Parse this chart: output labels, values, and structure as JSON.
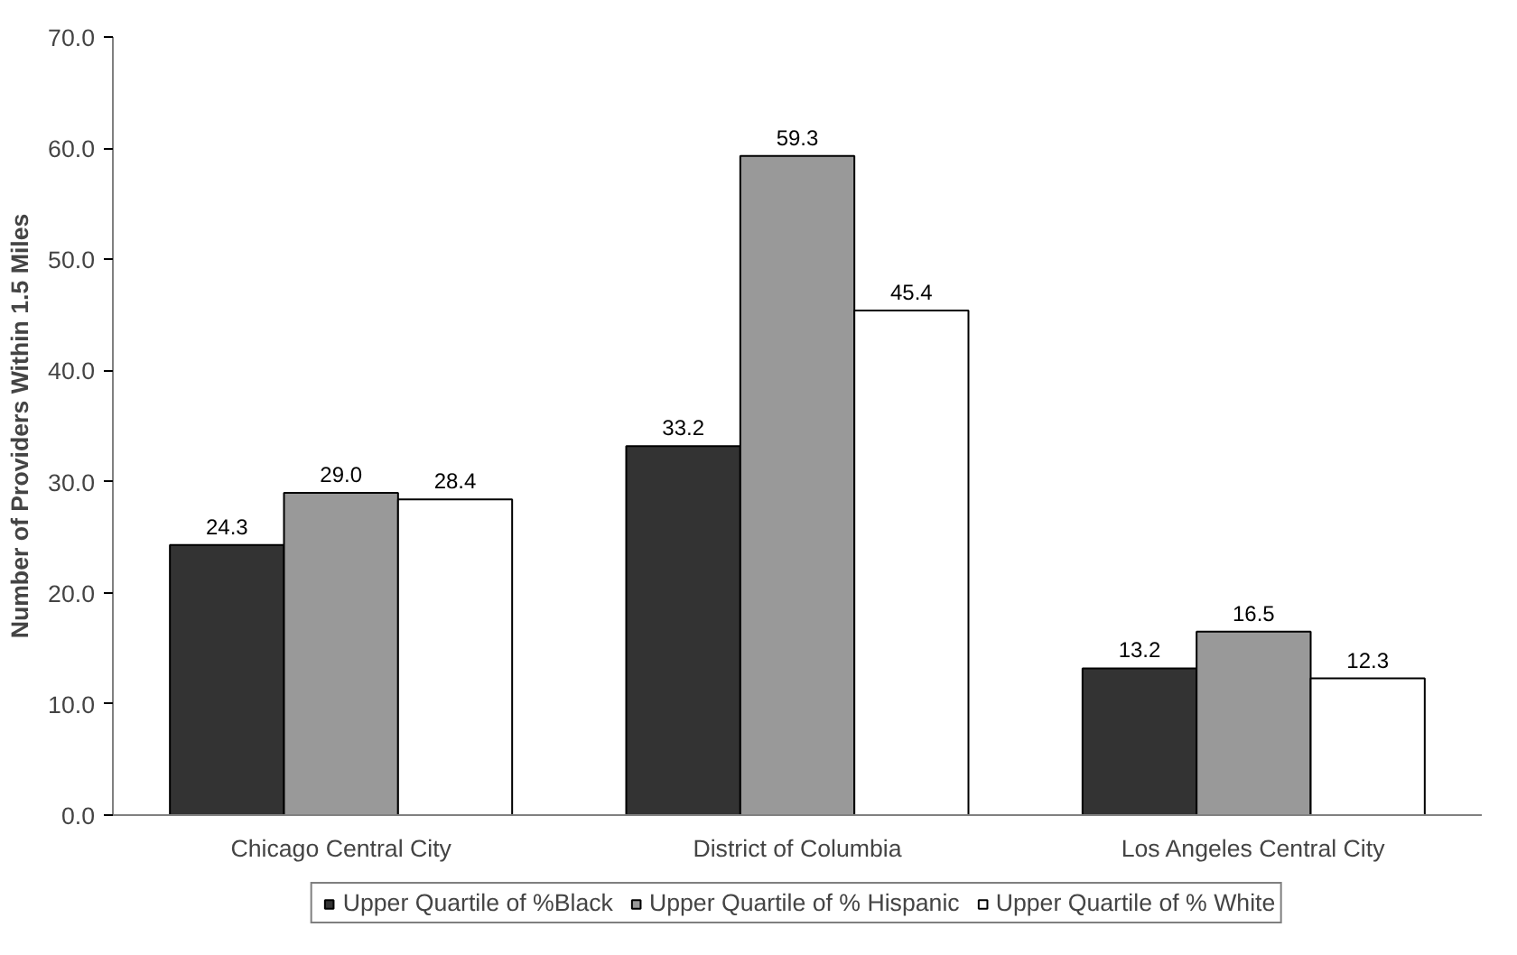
{
  "chart_data": {
    "type": "bar",
    "ylabel": "Number of Providers Within 1.5 Miles",
    "categories": [
      "Chicago Central City",
      "District of Columbia",
      "Los Angeles Central City"
    ],
    "series": [
      {
        "name": "Upper Quartile of %Black",
        "color": "#333333",
        "values": [
          24.3,
          33.2,
          13.2
        ],
        "value_labels": [
          "24.3",
          "33.2",
          "13.2"
        ]
      },
      {
        "name": "Upper Quartile of % Hispanic",
        "color": "#999999",
        "values": [
          29.0,
          59.3,
          16.5
        ],
        "value_labels": [
          "29.0",
          "59.3",
          "16.5"
        ]
      },
      {
        "name": "Upper Quartile of % White",
        "color": "#ffffff",
        "values": [
          28.4,
          45.4,
          12.3
        ],
        "value_labels": [
          "28.4",
          "45.4",
          "12.3"
        ]
      }
    ],
    "ylim": [
      0,
      70
    ],
    "yticks": [
      {
        "value": 0,
        "label": "0.0"
      },
      {
        "value": 10,
        "label": "10.0"
      },
      {
        "value": 20,
        "label": "20.0"
      },
      {
        "value": 30,
        "label": "30.0"
      },
      {
        "value": 40,
        "label": "40.0"
      },
      {
        "value": 50,
        "label": "50.0"
      },
      {
        "value": 60,
        "label": "60.0"
      },
      {
        "value": 70,
        "label": "70.0"
      }
    ],
    "data_labels": true,
    "grid": false,
    "legend": "bottom"
  }
}
